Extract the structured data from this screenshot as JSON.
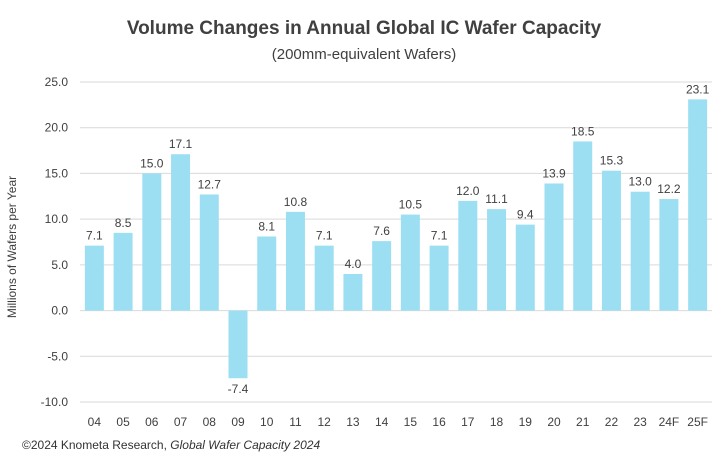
{
  "chart_data": {
    "type": "bar",
    "title": "Volume Changes in Annual Global IC Wafer Capacity",
    "subtitle": "(200mm-equivalent Wafers)",
    "xlabel": "",
    "ylabel": "Millions of Wafers per Year",
    "ylim": [
      -10,
      25
    ],
    "yticks": [
      "-10.0",
      "-5.0",
      "0.0",
      "5.0",
      "10.0",
      "15.0",
      "20.0",
      "25.0"
    ],
    "ytick_values": [
      -10,
      -5,
      0,
      5,
      10,
      15,
      20,
      25
    ],
    "grid": "horizontal",
    "legend": "none",
    "bar_color": "#9ddff2",
    "categories": [
      "04",
      "05",
      "06",
      "07",
      "08",
      "09",
      "10",
      "11",
      "12",
      "13",
      "14",
      "15",
      "16",
      "17",
      "18",
      "19",
      "20",
      "21",
      "22",
      "23",
      "24F",
      "25F"
    ],
    "values": [
      7.1,
      8.5,
      15.0,
      17.1,
      12.7,
      -7.4,
      8.1,
      10.8,
      7.1,
      4.0,
      7.6,
      10.5,
      7.1,
      12.0,
      11.1,
      9.4,
      13.9,
      18.5,
      15.3,
      13.0,
      12.2,
      23.1
    ],
    "value_labels": [
      "7.1",
      "8.5",
      "15.0",
      "17.1",
      "12.7",
      "-7.4",
      "8.1",
      "10.8",
      "7.1",
      "4.0",
      "7.6",
      "10.5",
      "7.1",
      "12.0",
      "11.1",
      "9.4",
      "13.9",
      "18.5",
      "15.3",
      "13.0",
      "12.2",
      "23.1"
    ]
  },
  "footer": {
    "source_prefix": "©2024 Knometa Research, ",
    "source_title": "Global Wafer Capacity 2024"
  }
}
